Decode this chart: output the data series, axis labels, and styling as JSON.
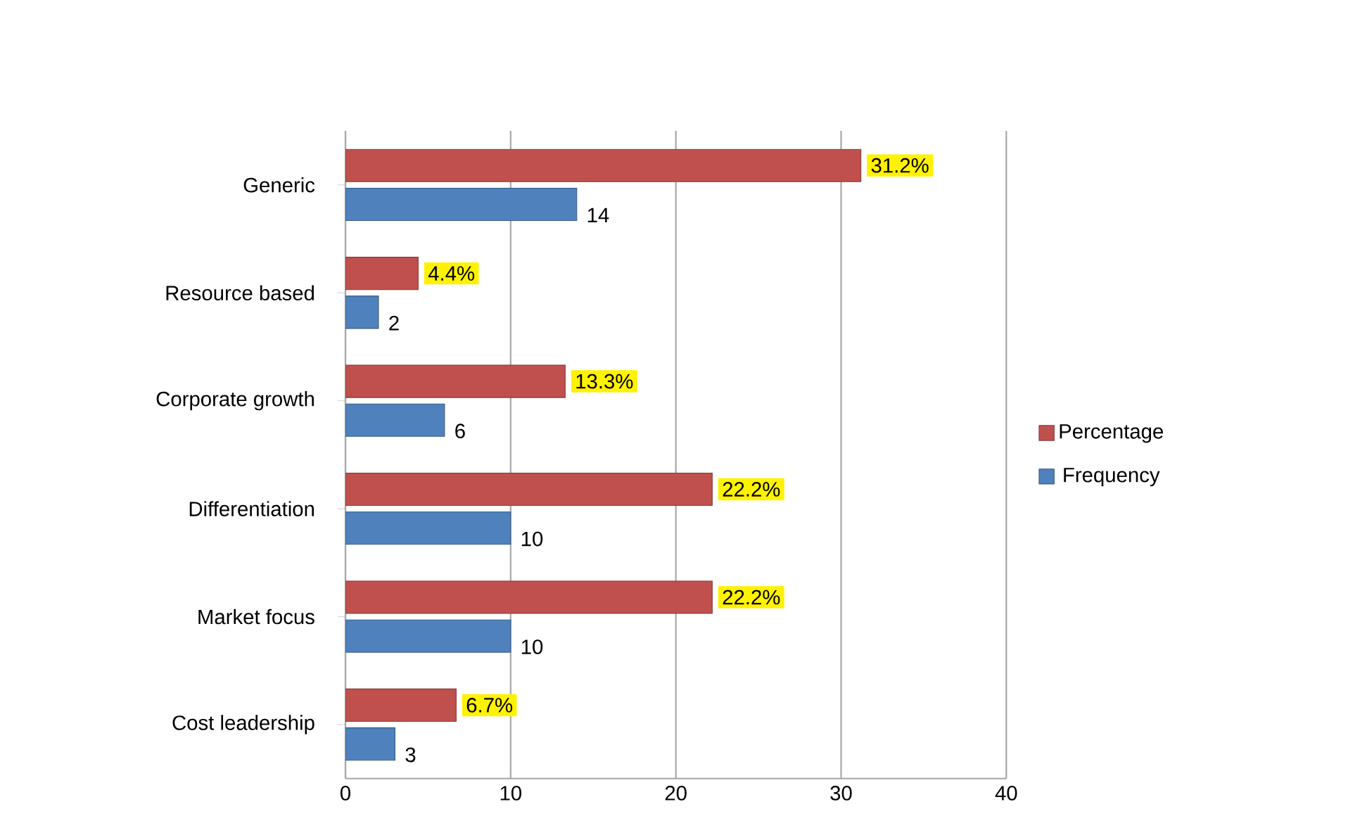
{
  "chart_data": {
    "type": "bar",
    "orientation": "horizontal",
    "categories": [
      "Generic",
      "Resource based",
      "Corporate growth",
      "Differentiation",
      "Market focus",
      "Cost leadership"
    ],
    "series": [
      {
        "name": "Percentage",
        "color": "#c0504d",
        "values": [
          31.2,
          4.4,
          13.3,
          22.2,
          22.2,
          6.7
        ],
        "value_labels": [
          "31.2%",
          "4.4%",
          "13.3%",
          "22.2%",
          "22.2%",
          "6.7%"
        ]
      },
      {
        "name": "Frequency",
        "color": "#4f81bd",
        "values": [
          14,
          2,
          6,
          10,
          10,
          3
        ],
        "value_labels": [
          "14",
          "2",
          "6",
          "10",
          "10",
          "3"
        ]
      }
    ],
    "xlim": [
      0,
      40
    ],
    "xticks": [
      0,
      10,
      20,
      30,
      40
    ],
    "grid": "x",
    "legend": "right"
  }
}
